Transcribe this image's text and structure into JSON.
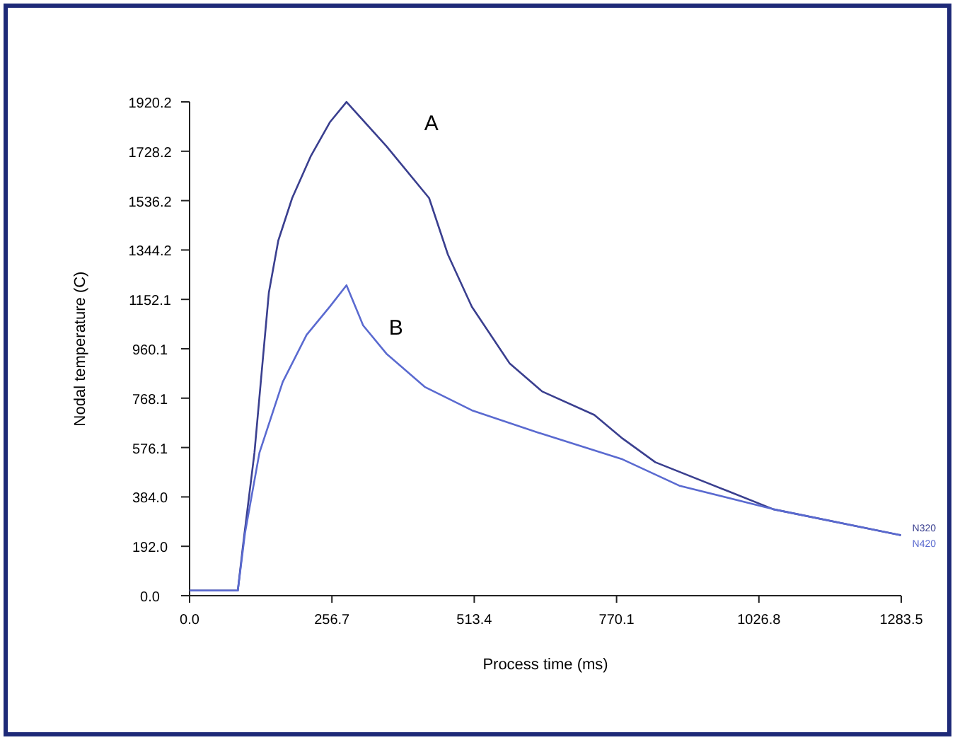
{
  "chart_data": {
    "type": "line",
    "xlabel": "Process time (ms)",
    "ylabel": "Nodal temperature (C)",
    "xlim": [
      0,
      1283.5
    ],
    "xticks": [
      {
        "value": 0,
        "label": "0.0"
      },
      256.7,
      513.4,
      770.1,
      1026.8,
      1283.5
    ],
    "ylim": [
      0,
      1920.2
    ],
    "yticks": [
      {
        "value": 0,
        "label": "0.0"
      },
      {
        "value": 192,
        "label": "192.0"
      },
      {
        "value": 384,
        "label": "384.0"
      },
      576.1,
      768.1,
      960.1,
      1152.1,
      1344.2,
      1536.2,
      1728.2,
      1920.2
    ],
    "grid": false,
    "marker": "none",
    "line_style": "solid",
    "annotations": [
      "A",
      "B"
    ],
    "series": [
      {
        "name": "N320",
        "color": "#3a3f8f",
        "x": [
          0,
          87,
          96,
          117,
          130,
          143,
          160,
          185,
          219,
          253,
          283,
          355,
          432,
          466,
          509,
          577,
          636,
          730,
          781,
          840,
          968,
          1053,
          1283
        ],
        "values": [
          20,
          20,
          189,
          556,
          869,
          1179,
          1381,
          1546,
          1711,
          1841,
          1920,
          1748,
          1546,
          1326,
          1124,
          904,
          794,
          703,
          611,
          519,
          409,
          336,
          235
        ]
      },
      {
        "name": "N420",
        "color": "#5a6ad0",
        "x": [
          0,
          87,
          100,
          126,
          168,
          211,
          253,
          283,
          313,
          355,
          424,
          509,
          636,
          781,
          883,
          1053,
          1283
        ],
        "values": [
          20,
          20,
          244,
          556,
          831,
          1014,
          1124,
          1207,
          1051,
          941,
          812,
          721,
          629,
          530,
          428,
          336,
          235
        ]
      }
    ]
  }
}
